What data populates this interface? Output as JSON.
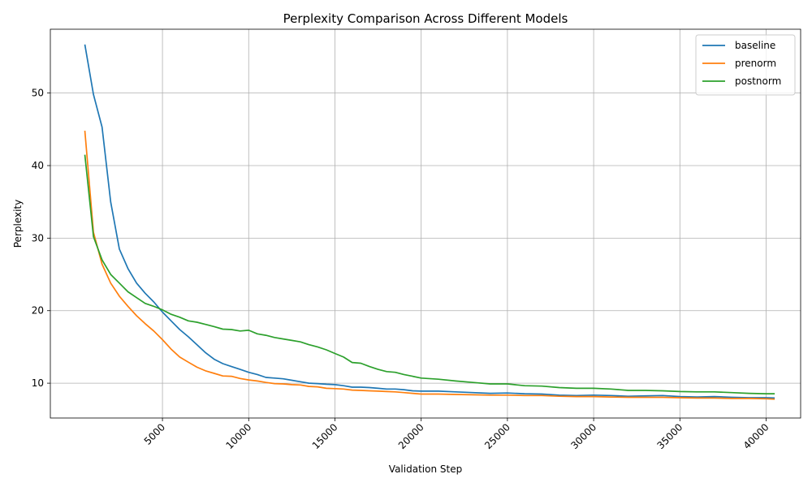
{
  "chart_data": {
    "type": "line",
    "title": "Perplexity Comparison Across Different Models",
    "xlabel": "Validation Step",
    "ylabel": "Perplexity",
    "xlim": [
      -1500,
      42000
    ],
    "ylim": [
      5.2,
      58.8
    ],
    "xticks": [
      5000,
      10000,
      15000,
      20000,
      25000,
      30000,
      35000,
      40000
    ],
    "yticks": [
      10,
      20,
      30,
      40,
      50
    ],
    "xtick_rotation": 45,
    "grid": true,
    "legend_position": "top-right",
    "series": [
      {
        "name": "baseline",
        "color": "#1f77b4",
        "points": [
          [
            500,
            56.7
          ],
          [
            1000,
            49.8
          ],
          [
            1500,
            45.3
          ],
          [
            2000,
            35.0
          ],
          [
            2500,
            28.5
          ],
          [
            3000,
            25.8
          ],
          [
            3500,
            23.8
          ],
          [
            4000,
            22.4
          ],
          [
            4500,
            21.2
          ],
          [
            5000,
            19.8
          ],
          [
            5500,
            18.6
          ],
          [
            6000,
            17.4
          ],
          [
            6500,
            16.4
          ],
          [
            7000,
            15.3
          ],
          [
            7500,
            14.2
          ],
          [
            8000,
            13.3
          ],
          [
            8500,
            12.7
          ],
          [
            9000,
            12.3
          ],
          [
            9500,
            11.9
          ],
          [
            10000,
            11.5
          ],
          [
            10500,
            11.2
          ],
          [
            11000,
            10.8
          ],
          [
            11500,
            10.7
          ],
          [
            12000,
            10.6
          ],
          [
            12500,
            10.4
          ],
          [
            13000,
            10.2
          ],
          [
            13500,
            10.0
          ],
          [
            14000,
            9.95
          ],
          [
            14500,
            9.85
          ],
          [
            15000,
            9.8
          ],
          [
            15500,
            9.65
          ],
          [
            16000,
            9.45
          ],
          [
            16500,
            9.45
          ],
          [
            17000,
            9.4
          ],
          [
            17500,
            9.3
          ],
          [
            18000,
            9.2
          ],
          [
            18500,
            9.2
          ],
          [
            19000,
            9.1
          ],
          [
            19500,
            8.95
          ],
          [
            20000,
            8.9
          ],
          [
            21000,
            8.9
          ],
          [
            22000,
            8.8
          ],
          [
            23000,
            8.7
          ],
          [
            24000,
            8.6
          ],
          [
            25000,
            8.65
          ],
          [
            26000,
            8.55
          ],
          [
            27000,
            8.5
          ],
          [
            28000,
            8.35
          ],
          [
            29000,
            8.3
          ],
          [
            30000,
            8.35
          ],
          [
            31000,
            8.3
          ],
          [
            32000,
            8.2
          ],
          [
            33000,
            8.25
          ],
          [
            34000,
            8.3
          ],
          [
            35000,
            8.15
          ],
          [
            36000,
            8.1
          ],
          [
            37000,
            8.15
          ],
          [
            38000,
            8.05
          ],
          [
            39000,
            8.0
          ],
          [
            40000,
            8.0
          ],
          [
            40500,
            7.95
          ]
        ]
      },
      {
        "name": "prenorm",
        "color": "#ff7f0e",
        "points": [
          [
            500,
            44.8
          ],
          [
            1000,
            30.8
          ],
          [
            1500,
            26.4
          ],
          [
            2000,
            23.8
          ],
          [
            2500,
            22.0
          ],
          [
            3000,
            20.6
          ],
          [
            3500,
            19.3
          ],
          [
            4000,
            18.2
          ],
          [
            4500,
            17.2
          ],
          [
            5000,
            16.0
          ],
          [
            5500,
            14.7
          ],
          [
            6000,
            13.6
          ],
          [
            6500,
            12.9
          ],
          [
            7000,
            12.2
          ],
          [
            7500,
            11.7
          ],
          [
            8000,
            11.35
          ],
          [
            8500,
            11.0
          ],
          [
            9000,
            10.95
          ],
          [
            9500,
            10.65
          ],
          [
            10000,
            10.45
          ],
          [
            10500,
            10.3
          ],
          [
            11000,
            10.1
          ],
          [
            11500,
            9.95
          ],
          [
            12000,
            9.9
          ],
          [
            12500,
            9.8
          ],
          [
            13000,
            9.75
          ],
          [
            13500,
            9.55
          ],
          [
            14000,
            9.5
          ],
          [
            14500,
            9.3
          ],
          [
            15000,
            9.25
          ],
          [
            15500,
            9.2
          ],
          [
            16000,
            9.05
          ],
          [
            16500,
            9.0
          ],
          [
            17000,
            8.95
          ],
          [
            17500,
            8.9
          ],
          [
            18000,
            8.85
          ],
          [
            18500,
            8.8
          ],
          [
            19000,
            8.7
          ],
          [
            19500,
            8.6
          ],
          [
            20000,
            8.5
          ],
          [
            21000,
            8.5
          ],
          [
            22000,
            8.45
          ],
          [
            23000,
            8.4
          ],
          [
            24000,
            8.35
          ],
          [
            25000,
            8.35
          ],
          [
            26000,
            8.3
          ],
          [
            27000,
            8.3
          ],
          [
            28000,
            8.2
          ],
          [
            29000,
            8.15
          ],
          [
            30000,
            8.15
          ],
          [
            31000,
            8.1
          ],
          [
            32000,
            8.05
          ],
          [
            33000,
            8.05
          ],
          [
            34000,
            8.05
          ],
          [
            35000,
            8.0
          ],
          [
            36000,
            7.95
          ],
          [
            37000,
            7.95
          ],
          [
            38000,
            7.9
          ],
          [
            39000,
            7.9
          ],
          [
            40000,
            7.85
          ],
          [
            40500,
            7.8
          ]
        ]
      },
      {
        "name": "postnorm",
        "color": "#2ca02c",
        "points": [
          [
            500,
            41.5
          ],
          [
            1000,
            30.2
          ],
          [
            1500,
            27.0
          ],
          [
            2000,
            25.0
          ],
          [
            2500,
            23.8
          ],
          [
            3000,
            22.6
          ],
          [
            3500,
            21.8
          ],
          [
            4000,
            21.0
          ],
          [
            4500,
            20.6
          ],
          [
            5000,
            20.1
          ],
          [
            5500,
            19.5
          ],
          [
            6000,
            19.1
          ],
          [
            6500,
            18.6
          ],
          [
            7000,
            18.4
          ],
          [
            7500,
            18.1
          ],
          [
            8000,
            17.8
          ],
          [
            8500,
            17.45
          ],
          [
            9000,
            17.4
          ],
          [
            9500,
            17.2
          ],
          [
            10000,
            17.3
          ],
          [
            10500,
            16.8
          ],
          [
            11000,
            16.6
          ],
          [
            11500,
            16.3
          ],
          [
            12000,
            16.1
          ],
          [
            12500,
            15.9
          ],
          [
            13000,
            15.7
          ],
          [
            13500,
            15.3
          ],
          [
            14000,
            15.0
          ],
          [
            14500,
            14.6
          ],
          [
            15000,
            14.1
          ],
          [
            15500,
            13.6
          ],
          [
            16000,
            12.85
          ],
          [
            16500,
            12.75
          ],
          [
            17000,
            12.3
          ],
          [
            17500,
            11.9
          ],
          [
            18000,
            11.6
          ],
          [
            18500,
            11.5
          ],
          [
            19000,
            11.2
          ],
          [
            19500,
            10.95
          ],
          [
            20000,
            10.7
          ],
          [
            21000,
            10.55
          ],
          [
            22000,
            10.3
          ],
          [
            23000,
            10.1
          ],
          [
            24000,
            9.9
          ],
          [
            25000,
            9.9
          ],
          [
            26000,
            9.65
          ],
          [
            27000,
            9.6
          ],
          [
            28000,
            9.4
          ],
          [
            29000,
            9.3
          ],
          [
            30000,
            9.3
          ],
          [
            31000,
            9.2
          ],
          [
            32000,
            9.0
          ],
          [
            33000,
            9.0
          ],
          [
            34000,
            8.95
          ],
          [
            35000,
            8.85
          ],
          [
            36000,
            8.8
          ],
          [
            37000,
            8.8
          ],
          [
            38000,
            8.7
          ],
          [
            39000,
            8.6
          ],
          [
            40000,
            8.55
          ],
          [
            40500,
            8.55
          ]
        ]
      }
    ]
  }
}
